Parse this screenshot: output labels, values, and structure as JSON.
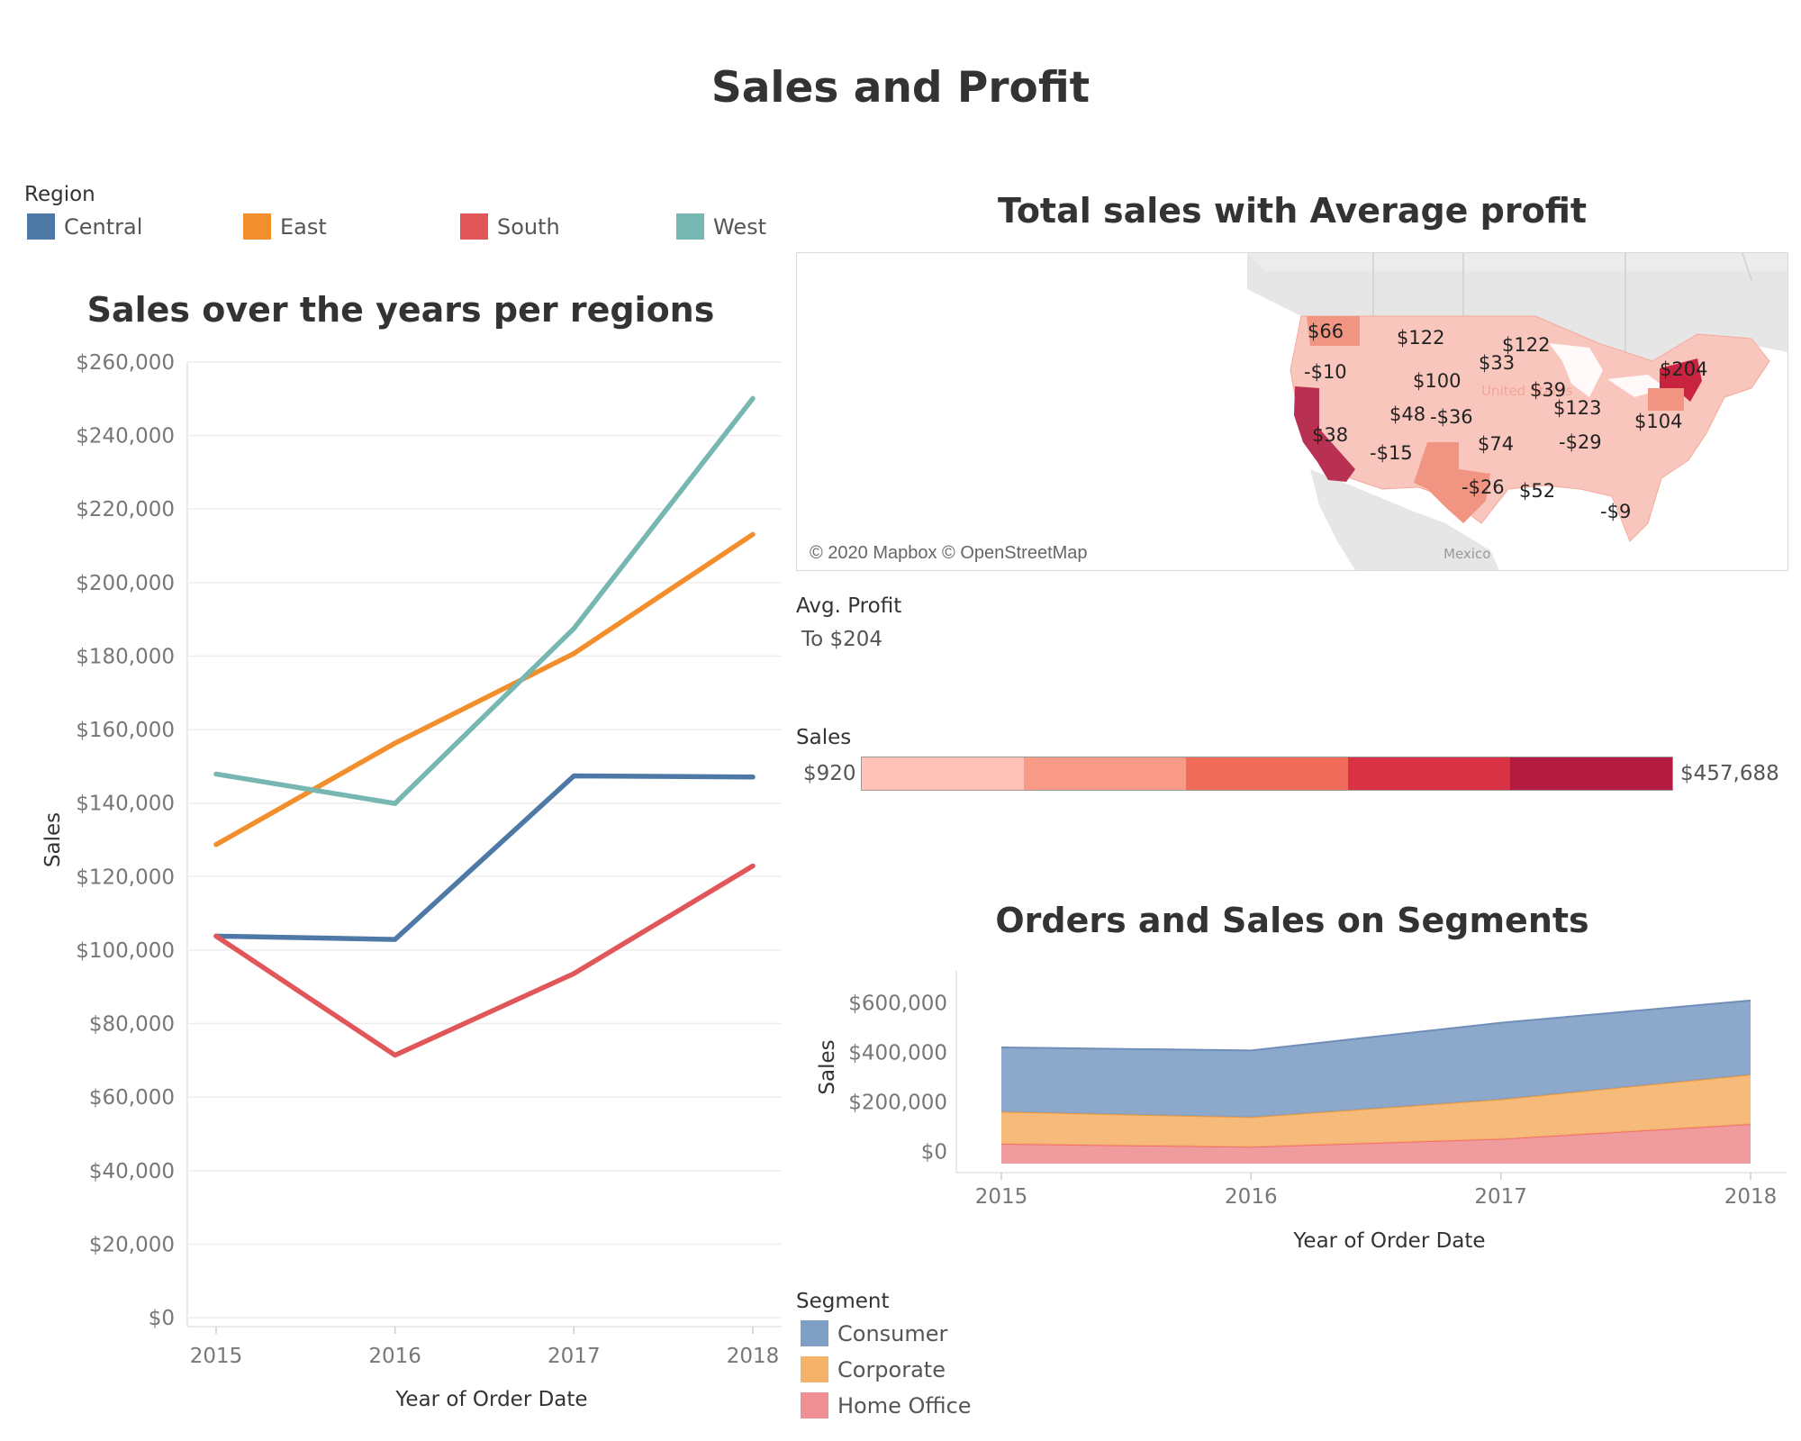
{
  "dashboard": {
    "title": "Sales and Profit"
  },
  "colors": {
    "Central": "#4e79a7",
    "East": "#f28e2b",
    "South": "#e15759",
    "West": "#76b7b2",
    "Consumer": "#7f9fc5",
    "Corporate": "#f5b26b",
    "HomeOffice": "#ee9094"
  },
  "region_legend": {
    "title": "Region",
    "items": [
      {
        "label": "Central",
        "color": "#4e79a7"
      },
      {
        "label": "East",
        "color": "#f28e2b"
      },
      {
        "label": "South",
        "color": "#e15759"
      },
      {
        "label": "West",
        "color": "#76b7b2"
      }
    ]
  },
  "map_panel": {
    "title": "Total sales with Average profit",
    "attribution": "© 2020 Mapbox © OpenStreetMap",
    "country_label_mexico": "Mexico",
    "country_label_us": "United States",
    "state_labels": [
      {
        "text": "$66"
      },
      {
        "text": "$122"
      },
      {
        "text": "$122"
      },
      {
        "text": "$33"
      },
      {
        "text": "-$10"
      },
      {
        "text": "$100"
      },
      {
        "text": "$204"
      },
      {
        "text": "$39"
      },
      {
        "text": "$48"
      },
      {
        "text": "-$36"
      },
      {
        "text": "$123"
      },
      {
        "text": "$104"
      },
      {
        "text": "$38"
      },
      {
        "text": "-$15"
      },
      {
        "text": "$74"
      },
      {
        "text": "-$29"
      },
      {
        "text": "-$26"
      },
      {
        "text": "$52"
      },
      {
        "text": "-$9"
      }
    ]
  },
  "avg_profit_legend": {
    "title": "Avg. Profit",
    "value": "To $204"
  },
  "sales_legend": {
    "title": "Sales",
    "min_label": "$920",
    "max_label": "$457,688",
    "ramp": [
      "#ffc2b8",
      "#f89a86",
      "#f06b5a",
      "#d93244",
      "#b31b40"
    ]
  },
  "segment_legend": {
    "title": "Segment",
    "items": [
      {
        "label": "Consumer",
        "color": "#7f9fc5"
      },
      {
        "label": "Corporate",
        "color": "#f5b26b"
      },
      {
        "label": "Home Office",
        "color": "#ee9094"
      }
    ]
  },
  "chart_data": [
    {
      "type": "line",
      "title": "Sales over the years per regions",
      "xlabel": "Year of Order Date",
      "ylabel": "Sales",
      "categories": [
        "2015",
        "2016",
        "2017",
        "2018"
      ],
      "ylim": [
        0,
        260000
      ],
      "yticks": [
        {
          "value": 0,
          "label": "$0"
        },
        {
          "value": 20000,
          "label": "$20,000"
        },
        {
          "value": 40000,
          "label": "$40,000"
        },
        {
          "value": 60000,
          "label": "$60,000"
        },
        {
          "value": 80000,
          "label": "$80,000"
        },
        {
          "value": 100000,
          "label": "$100,000"
        },
        {
          "value": 120000,
          "label": "$120,000"
        },
        {
          "value": 140000,
          "label": "$140,000"
        },
        {
          "value": 160000,
          "label": "$160,000"
        },
        {
          "value": 180000,
          "label": "$180,000"
        },
        {
          "value": 200000,
          "label": "$200,000"
        },
        {
          "value": 220000,
          "label": "$220,000"
        },
        {
          "value": 240000,
          "label": "$240,000"
        },
        {
          "value": 260000,
          "label": "$260,000"
        }
      ],
      "grid": true,
      "series": [
        {
          "name": "Central",
          "color": "#4e79a7",
          "values": [
            103800,
            102900,
            147400,
            147100
          ]
        },
        {
          "name": "East",
          "color": "#f28e2b",
          "values": [
            128700,
            156300,
            180700,
            213100
          ]
        },
        {
          "name": "South",
          "color": "#e15759",
          "values": [
            103800,
            71400,
            93600,
            122900
          ]
        },
        {
          "name": "West",
          "color": "#76b7b2",
          "values": [
            147900,
            139900,
            187500,
            250100
          ]
        }
      ]
    },
    {
      "type": "area",
      "stacked": true,
      "title": "Orders and Sales on Segments",
      "xlabel": "Year of Order Date",
      "ylabel": "Sales",
      "categories": [
        "2015",
        "2016",
        "2017",
        "2018"
      ],
      "ylim": [
        -50000,
        730000
      ],
      "yticks": [
        {
          "value": 0,
          "label": "$0"
        },
        {
          "value": 200000,
          "label": "$200,000"
        },
        {
          "value": 400000,
          "label": "$400,000"
        },
        {
          "value": 600000,
          "label": "$600,000"
        }
      ],
      "series": [
        {
          "name": "Home Office",
          "color": "#ee9094",
          "values": [
            30000,
            18000,
            50000,
            110000
          ]
        },
        {
          "name": "Corporate",
          "color": "#f5b26b",
          "values": [
            130000,
            120000,
            160000,
            200000
          ]
        },
        {
          "name": "Consumer",
          "color": "#7f9fc5",
          "values": [
            260000,
            270000,
            310000,
            300000
          ]
        }
      ]
    }
  ]
}
